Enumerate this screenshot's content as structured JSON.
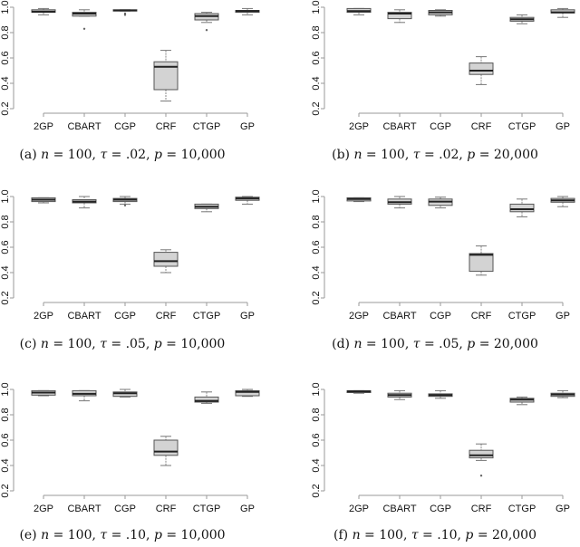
{
  "chart_data": [
    {
      "type": "boxplot",
      "panel": "a",
      "caption": [
        {
          "t": "(a) ",
          "i": false
        },
        {
          "t": "n",
          "i": true
        },
        {
          "t": " = 100, ",
          "i": false
        },
        {
          "t": "τ",
          "i": true
        },
        {
          "t": " = .02, ",
          "i": false
        },
        {
          "t": "p",
          "i": true
        },
        {
          "t": " = 10,000",
          "i": false
        }
      ],
      "categories": [
        "2GP",
        "CBART",
        "CGP",
        "CRF",
        "CTGP",
        "GP"
      ],
      "yticks": [
        "0.2",
        "0.4",
        "0.6",
        "0.8",
        "1.0"
      ],
      "ylim": [
        0.2,
        1.0
      ],
      "boxes": [
        [
          0.94,
          0.96,
          0.965,
          0.98,
          0.99,
          []
        ],
        [
          0.93,
          0.93,
          0.95,
          0.96,
          0.98,
          [
            0.83
          ]
        ],
        [
          0.97,
          0.97,
          0.975,
          0.98,
          0.98,
          [
            0.95,
            0.94
          ]
        ],
        [
          0.26,
          0.35,
          0.53,
          0.57,
          0.66,
          []
        ],
        [
          0.88,
          0.9,
          0.93,
          0.95,
          0.96,
          [
            0.82
          ]
        ],
        [
          0.94,
          0.96,
          0.97,
          0.975,
          0.99,
          []
        ]
      ]
    },
    {
      "type": "boxplot",
      "panel": "b",
      "caption": [
        {
          "t": "(b) ",
          "i": false
        },
        {
          "t": "n",
          "i": true
        },
        {
          "t": " = 100, ",
          "i": false
        },
        {
          "t": "τ",
          "i": true
        },
        {
          "t": " = .02, ",
          "i": false
        },
        {
          "t": "p",
          "i": true
        },
        {
          "t": " = 20,000",
          "i": false
        }
      ],
      "categories": [
        "2GP",
        "CBART",
        "CGP",
        "CRF",
        "CTGP",
        "GP"
      ],
      "yticks": [
        "0.2",
        "0.4",
        "0.6",
        "0.8",
        "1.0"
      ],
      "ylim": [
        0.2,
        1.0
      ],
      "boxes": [
        [
          0.94,
          0.96,
          0.97,
          0.99,
          0.99,
          []
        ],
        [
          0.88,
          0.91,
          0.95,
          0.96,
          0.98,
          []
        ],
        [
          0.93,
          0.94,
          0.96,
          0.975,
          0.98,
          []
        ],
        [
          0.39,
          0.47,
          0.5,
          0.56,
          0.61,
          []
        ],
        [
          0.87,
          0.89,
          0.905,
          0.92,
          0.94,
          []
        ],
        [
          0.92,
          0.955,
          0.96,
          0.98,
          0.99,
          []
        ]
      ]
    },
    {
      "type": "boxplot",
      "panel": "c",
      "caption": [
        {
          "t": "(c) ",
          "i": false
        },
        {
          "t": "n",
          "i": true
        },
        {
          "t": " = 100, ",
          "i": false
        },
        {
          "t": "τ",
          "i": true
        },
        {
          "t": " = .05, ",
          "i": false
        },
        {
          "t": "p",
          "i": true
        },
        {
          "t": " = 10,000",
          "i": false
        }
      ],
      "categories": [
        "2GP",
        "CBART",
        "CGP",
        "CRF",
        "CTGP",
        "GP"
      ],
      "yticks": [
        "0.2",
        "0.4",
        "0.6",
        "0.8",
        "1.0"
      ],
      "ylim": [
        0.2,
        1.0
      ],
      "boxes": [
        [
          0.95,
          0.96,
          0.975,
          0.99,
          0.99,
          []
        ],
        [
          0.91,
          0.95,
          0.96,
          0.975,
          1.0,
          []
        ],
        [
          0.94,
          0.96,
          0.975,
          0.985,
          1.0,
          [
            0.93
          ]
        ],
        [
          0.4,
          0.45,
          0.49,
          0.56,
          0.58,
          []
        ],
        [
          0.88,
          0.905,
          0.92,
          0.94,
          0.94,
          []
        ],
        [
          0.94,
          0.97,
          0.985,
          0.995,
          1.0,
          []
        ]
      ]
    },
    {
      "type": "boxplot",
      "panel": "d",
      "caption": [
        {
          "t": "(d) ",
          "i": false
        },
        {
          "t": "n",
          "i": true
        },
        {
          "t": " = 100, ",
          "i": false
        },
        {
          "t": "τ",
          "i": true
        },
        {
          "t": " = .05, ",
          "i": false
        },
        {
          "t": "p",
          "i": true
        },
        {
          "t": " = 20,000",
          "i": false
        }
      ],
      "categories": [
        "2GP",
        "CBART",
        "CGP",
        "CRF",
        "CTGP",
        "GP"
      ],
      "yticks": [
        "0.2",
        "0.4",
        "0.6",
        "0.8",
        "1.0"
      ],
      "ylim": [
        0.2,
        1.0
      ],
      "boxes": [
        [
          0.96,
          0.965,
          0.98,
          0.99,
          0.99,
          []
        ],
        [
          0.91,
          0.94,
          0.955,
          0.98,
          1.0,
          []
        ],
        [
          0.91,
          0.93,
          0.96,
          0.98,
          0.995,
          []
        ],
        [
          0.38,
          0.41,
          0.54,
          0.55,
          0.61,
          []
        ],
        [
          0.84,
          0.88,
          0.9,
          0.94,
          0.98,
          []
        ],
        [
          0.92,
          0.955,
          0.97,
          0.985,
          1.0,
          []
        ]
      ]
    },
    {
      "type": "boxplot",
      "panel": "e",
      "caption": [
        {
          "t": "(e) ",
          "i": false
        },
        {
          "t": "n",
          "i": true
        },
        {
          "t": " = 100, ",
          "i": false
        },
        {
          "t": "τ",
          "i": true
        },
        {
          "t": " = .10, ",
          "i": false
        },
        {
          "t": "p",
          "i": true
        },
        {
          "t": " = 10,000",
          "i": false
        }
      ],
      "categories": [
        "2GP",
        "CBART",
        "CGP",
        "CRF",
        "CTGP",
        "GP"
      ],
      "yticks": [
        "0.2",
        "0.4",
        "0.6",
        "0.8",
        "1.0"
      ],
      "ylim": [
        0.2,
        1.0
      ],
      "boxes": [
        [
          0.95,
          0.955,
          0.975,
          0.99,
          0.99,
          []
        ],
        [
          0.91,
          0.95,
          0.965,
          0.99,
          0.99,
          []
        ],
        [
          0.94,
          0.945,
          0.97,
          0.98,
          1.0,
          []
        ],
        [
          0.4,
          0.48,
          0.51,
          0.6,
          0.63,
          []
        ],
        [
          0.89,
          0.9,
          0.91,
          0.94,
          0.98,
          []
        ],
        [
          0.945,
          0.95,
          0.98,
          0.99,
          1.0,
          []
        ]
      ]
    },
    {
      "type": "boxplot",
      "panel": "f",
      "caption": [
        {
          "t": "(f) ",
          "i": false
        },
        {
          "t": "n",
          "i": true
        },
        {
          "t": " = 100, ",
          "i": false
        },
        {
          "t": "τ",
          "i": true
        },
        {
          "t": " = .10, ",
          "i": false
        },
        {
          "t": "p",
          "i": true
        },
        {
          "t": " = 20,000",
          "i": false
        }
      ],
      "categories": [
        "2GP",
        "CBART",
        "CGP",
        "CRF",
        "CTGP",
        "GP"
      ],
      "yticks": [
        "0.2",
        "0.4",
        "0.6",
        "0.8",
        "1.0"
      ],
      "ylim": [
        0.2,
        1.0
      ],
      "boxes": [
        [
          0.97,
          0.975,
          0.985,
          0.99,
          0.99,
          []
        ],
        [
          0.92,
          0.94,
          0.955,
          0.97,
          0.99,
          []
        ],
        [
          0.93,
          0.945,
          0.955,
          0.965,
          0.99,
          []
        ],
        [
          0.44,
          0.46,
          0.48,
          0.52,
          0.57,
          [
            0.32
          ]
        ],
        [
          0.88,
          0.9,
          0.92,
          0.93,
          0.94,
          []
        ],
        [
          0.935,
          0.945,
          0.96,
          0.97,
          0.99,
          []
        ]
      ]
    }
  ],
  "colors": {
    "box_fill": "#d3d3d3",
    "box_stroke": "#555555",
    "median": "#222222",
    "axis": "#999999"
  }
}
